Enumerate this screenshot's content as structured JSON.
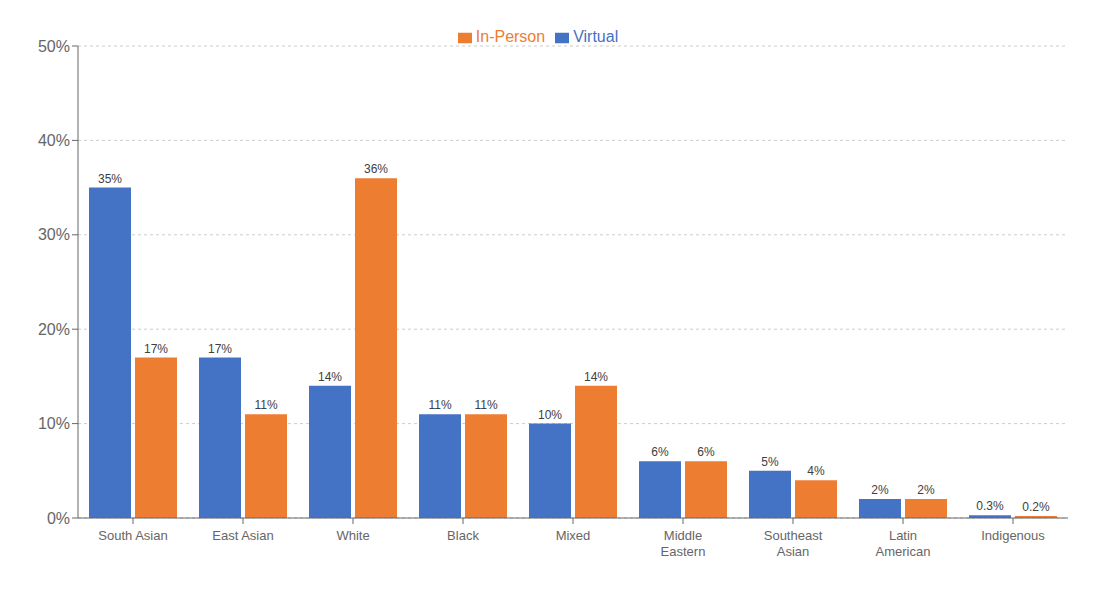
{
  "chart_data": {
    "type": "bar",
    "categories": [
      "South Asian",
      "East Asian",
      "White",
      "Black",
      "Mixed",
      "Middle\nEastern",
      "Southeast\nAsian",
      "Latin\nAmerican",
      "Indigenous"
    ],
    "series": [
      {
        "name": "Virtual",
        "color": "#4472C4",
        "values": [
          35,
          17,
          14,
          11,
          10,
          6,
          5,
          2,
          0.3
        ],
        "value_labels": [
          "35%",
          "17%",
          "14%",
          "11%",
          "10%",
          "6%",
          "5%",
          "2%",
          "0.3%"
        ]
      },
      {
        "name": "In-Person",
        "color": "#ED7D31",
        "values": [
          17,
          11,
          36,
          11,
          14,
          6,
          4,
          2,
          0.2
        ],
        "value_labels": [
          "17%",
          "11%",
          "36%",
          "11%",
          "14%",
          "6%",
          "4%",
          "2%",
          "0.2%"
        ]
      }
    ],
    "ylim": [
      0,
      50
    ],
    "yticks": [
      {
        "value": 0,
        "label": "0%"
      },
      {
        "value": 10,
        "label": "10%"
      },
      {
        "value": 20,
        "label": "20%"
      },
      {
        "value": 30,
        "label": "30%"
      },
      {
        "value": 40,
        "label": "40%"
      },
      {
        "value": 50,
        "label": "50%"
      }
    ],
    "grid": true,
    "legend": "upper center",
    "data_labels": true
  }
}
